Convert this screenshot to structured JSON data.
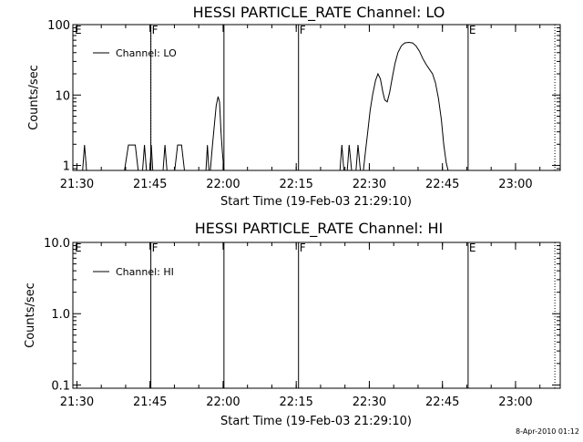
{
  "footer": {
    "timestamp": "8-Apr-2010 01:12"
  },
  "chart_data": [
    {
      "type": "line",
      "title": "HESSI PARTICLE_RATE Channel: LO",
      "xlabel": "Start Time (19-Feb-03 21:29:10)",
      "ylabel": "Counts/sec",
      "x_unit": "minutes after 21:29:10",
      "y_scale": "log",
      "xlim": [
        0,
        100
      ],
      "ylim": [
        0.85,
        100
      ],
      "x_ticks": [
        "21:30",
        "21:45",
        "22:00",
        "22:15",
        "22:30",
        "22:45",
        "23:00"
      ],
      "x_tick_values": [
        0.83,
        15.83,
        30.83,
        45.83,
        60.83,
        75.83,
        90.83
      ],
      "y_ticks": [
        "1",
        "10",
        "100"
      ],
      "y_tick_values": [
        1,
        10,
        100
      ],
      "legend": {
        "label": "Channel: LO",
        "placement": "upper-left"
      },
      "markers": [
        {
          "type": "solid",
          "x": 16.0,
          "label": "F"
        },
        {
          "type": "solid",
          "x": 31.0,
          "label": ""
        },
        {
          "type": "solid",
          "x": 46.3,
          "label": "F"
        },
        {
          "type": "solid",
          "x": 81.1,
          "label": "E"
        },
        {
          "type": "dotted",
          "x": 16.0,
          "label": ""
        },
        {
          "type": "dotted",
          "x": 98.9,
          "label": ""
        }
      ],
      "corner_label": "E",
      "series": [
        {
          "name": "Channel: LO",
          "points": [
            [
              2.0,
              0.8
            ],
            [
              2.4,
              1.95
            ],
            [
              2.8,
              0.8
            ],
            [
              10.6,
              0.8
            ],
            [
              11.4,
              1.95
            ],
            [
              12.8,
              1.95
            ],
            [
              13.4,
              0.8
            ],
            [
              14.3,
              0.8
            ],
            [
              14.7,
              1.95
            ],
            [
              15.1,
              0.8
            ],
            [
              15.8,
              0.8
            ],
            [
              16.1,
              1.95
            ],
            [
              16.4,
              0.8
            ],
            [
              18.5,
              0.8
            ],
            [
              18.9,
              1.95
            ],
            [
              19.3,
              0.8
            ],
            [
              20.9,
              0.8
            ],
            [
              21.5,
              1.95
            ],
            [
              22.3,
              1.95
            ],
            [
              22.9,
              0.8
            ],
            [
              27.3,
              0.8
            ],
            [
              27.6,
              1.95
            ],
            [
              27.9,
              0.8
            ],
            [
              28.2,
              0.8
            ],
            [
              28.6,
              1.8
            ],
            [
              29.0,
              3.5
            ],
            [
              29.4,
              7.0
            ],
            [
              29.8,
              9.5
            ],
            [
              30.1,
              8.0
            ],
            [
              30.4,
              3.0
            ],
            [
              30.7,
              1.5
            ],
            [
              31.0,
              0.8
            ],
            [
              54.8,
              0.8
            ],
            [
              55.2,
              1.95
            ],
            [
              55.6,
              0.8
            ],
            [
              56.3,
              0.8
            ],
            [
              56.7,
              1.95
            ],
            [
              57.2,
              0.8
            ],
            [
              58.1,
              0.8
            ],
            [
              58.5,
              1.95
            ],
            [
              59.0,
              0.8
            ],
            [
              59.6,
              0.8
            ],
            [
              60.0,
              1.5
            ],
            [
              60.5,
              3.0
            ],
            [
              61.0,
              6.0
            ],
            [
              61.5,
              10.0
            ],
            [
              62.1,
              16.0
            ],
            [
              62.6,
              20.0
            ],
            [
              63.1,
              17.0
            ],
            [
              63.6,
              11.0
            ],
            [
              64.0,
              8.5
            ],
            [
              64.5,
              8.0
            ],
            [
              65.0,
              11.0
            ],
            [
              65.5,
              17.0
            ],
            [
              66.1,
              28.0
            ],
            [
              66.7,
              40.0
            ],
            [
              67.4,
              50.0
            ],
            [
              68.1,
              55.0
            ],
            [
              68.9,
              56.0
            ],
            [
              69.7,
              55.0
            ],
            [
              70.4,
              50.0
            ],
            [
              71.1,
              42.0
            ],
            [
              71.8,
              33.0
            ],
            [
              72.5,
              27.0
            ],
            [
              73.2,
              23.0
            ],
            [
              73.8,
              20.0
            ],
            [
              74.4,
              15.0
            ],
            [
              75.0,
              9.0
            ],
            [
              75.6,
              4.5
            ],
            [
              76.1,
              2.0
            ],
            [
              76.6,
              1.1
            ],
            [
              77.0,
              0.8
            ]
          ]
        }
      ]
    },
    {
      "type": "line",
      "title": "HESSI PARTICLE_RATE Channel: HI",
      "xlabel": "Start Time (19-Feb-03 21:29:10)",
      "ylabel": "Counts/sec",
      "x_unit": "minutes after 21:29:10",
      "y_scale": "log",
      "xlim": [
        0,
        100
      ],
      "ylim": [
        0.09,
        10
      ],
      "x_ticks": [
        "21:30",
        "21:45",
        "22:00",
        "22:15",
        "22:30",
        "22:45",
        "23:00"
      ],
      "x_tick_values": [
        0.83,
        15.83,
        30.83,
        45.83,
        60.83,
        75.83,
        90.83
      ],
      "y_ticks": [
        "0.1",
        "1.0",
        "10.0"
      ],
      "y_tick_values": [
        0.1,
        1,
        10
      ],
      "legend": {
        "label": "Channel: HI",
        "placement": "upper-left"
      },
      "markers": [
        {
          "type": "solid",
          "x": 16.0,
          "label": "F"
        },
        {
          "type": "solid",
          "x": 31.0,
          "label": ""
        },
        {
          "type": "solid",
          "x": 46.3,
          "label": "F"
        },
        {
          "type": "solid",
          "x": 81.1,
          "label": "E"
        },
        {
          "type": "dotted",
          "x": 98.9,
          "label": ""
        }
      ],
      "corner_label": "E",
      "series": [
        {
          "name": "Channel: HI",
          "points": []
        }
      ]
    }
  ]
}
